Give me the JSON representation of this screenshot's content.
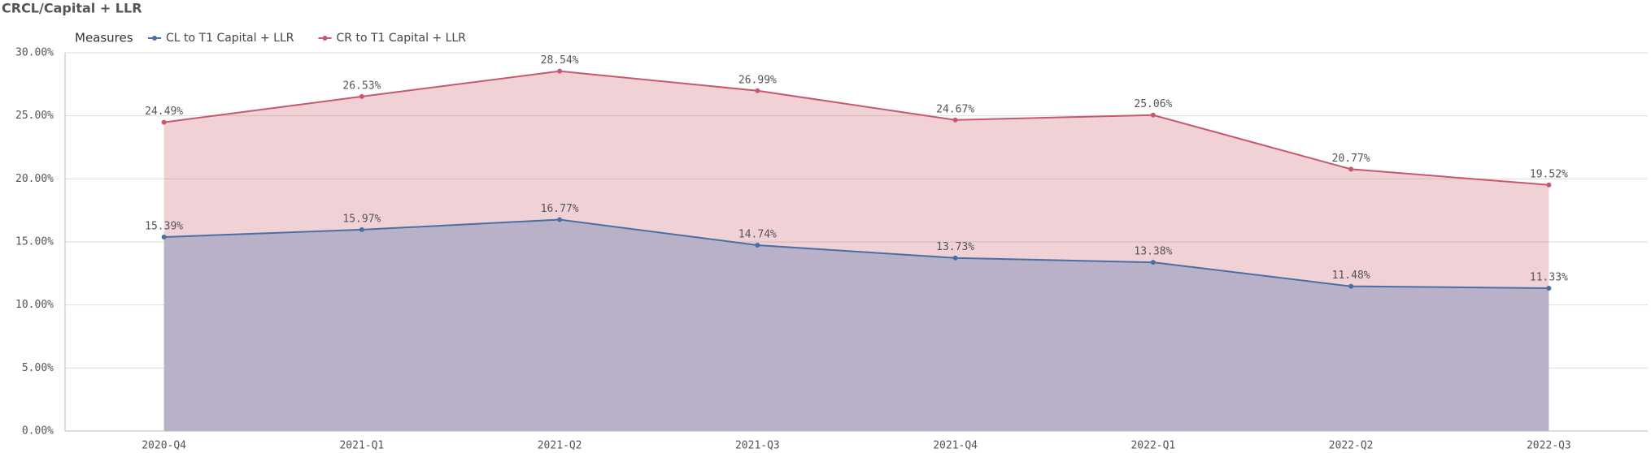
{
  "chart_data": {
    "type": "area",
    "title": "CRCL/Capital + LLR",
    "legend_title": "Measures",
    "legend_position": "top-left",
    "grid": true,
    "categories": [
      "2020-Q4",
      "2021-Q1",
      "2021-Q2",
      "2021-Q3",
      "2021-Q4",
      "2022-Q1",
      "2022-Q2",
      "2022-Q3"
    ],
    "ylim": [
      0,
      30
    ],
    "yticks": [
      {
        "value": 0,
        "label": "0.00%"
      },
      {
        "value": 5,
        "label": "5.00%"
      },
      {
        "value": 10,
        "label": "10.00%"
      },
      {
        "value": 15,
        "label": "15.00%"
      },
      {
        "value": 20,
        "label": "20.00%"
      },
      {
        "value": 25,
        "label": "25.00%"
      },
      {
        "value": 30,
        "label": "30.00%"
      }
    ],
    "series": [
      {
        "name": "CL to T1 Capital + LLR",
        "color": "#4a6fa5",
        "values": [
          15.39,
          15.97,
          16.77,
          14.74,
          13.73,
          13.38,
          11.48,
          11.33
        ],
        "value_labels": [
          "15.39%",
          "15.97%",
          "16.77%",
          "14.74%",
          "13.73%",
          "13.38%",
          "11.48%",
          "11.33%"
        ]
      },
      {
        "name": "CR to T1 Capital + LLR",
        "color": "#c8586c",
        "values": [
          24.49,
          26.53,
          28.54,
          26.99,
          24.67,
          25.06,
          20.77,
          19.52
        ],
        "value_labels": [
          "24.49%",
          "26.53%",
          "28.54%",
          "26.99%",
          "24.67%",
          "25.06%",
          "20.77%",
          "19.52%"
        ]
      }
    ]
  }
}
